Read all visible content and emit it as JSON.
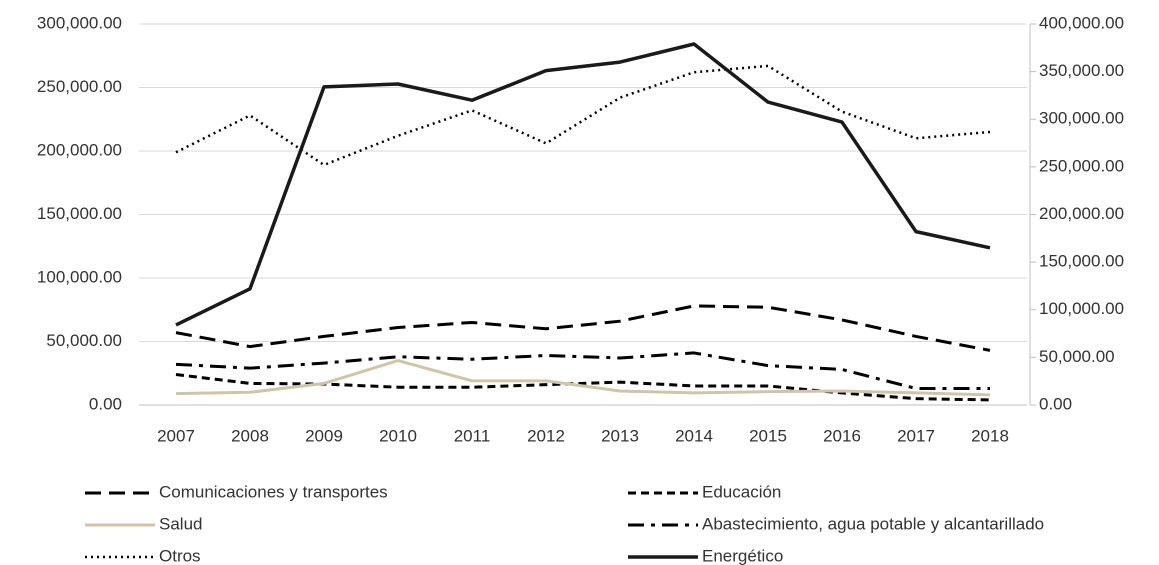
{
  "chart_data": {
    "type": "line",
    "categories": [
      "2007",
      "2008",
      "2009",
      "2010",
      "2011",
      "2012",
      "2013",
      "2014",
      "2015",
      "2016",
      "2017",
      "2018"
    ],
    "series": [
      {
        "name": "Comunicaciones y transportes",
        "color": "#000000",
        "style": "dashed",
        "values": [
          57000,
          46000,
          54000,
          61000,
          65000,
          60000,
          66000,
          78000,
          77000,
          67000,
          54000,
          43000
        ]
      },
      {
        "name": "Educación",
        "color": "#000000",
        "style": "short-dashed",
        "values": [
          24000,
          17000,
          16500,
          14000,
          14000,
          16000,
          18000,
          15000,
          15000,
          9500,
          5000,
          4000
        ]
      },
      {
        "name": "Salud",
        "color": "#cfc6a8",
        "style": "solid",
        "values": [
          9000,
          10000,
          17000,
          35000,
          19000,
          19000,
          11000,
          9500,
          10500,
          11000,
          9500,
          8000
        ]
      },
      {
        "name": "Abastecimiento, agua potable y alcantarillado",
        "color": "#000000",
        "style": "dash-dot",
        "values": [
          32000,
          29000,
          33000,
          38000,
          36000,
          39000,
          37000,
          41000,
          31000,
          28000,
          13000,
          13000
        ]
      },
      {
        "name": "Otros",
        "color": "#000000",
        "style": "dotted",
        "values": [
          199000,
          228000,
          189000,
          212000,
          232000,
          206000,
          242000,
          262000,
          267000,
          231000,
          210000,
          215000
        ]
      },
      {
        "name": "Energético",
        "color": "#1a1a1a",
        "style": "solid-thick",
        "axis": "y2",
        "values": [
          84000,
          122000,
          334000,
          337000,
          320000,
          351000,
          360000,
          379000,
          318000,
          297000,
          182000,
          165000
        ]
      }
    ],
    "ylim": [
      0,
      300000
    ],
    "yticks": [
      {
        "value": 0,
        "label": "0.00"
      },
      {
        "value": 50000,
        "label": "50,000.00"
      },
      {
        "value": 100000,
        "label": "100,000.00"
      },
      {
        "value": 150000,
        "label": "150,000.00"
      },
      {
        "value": 200000,
        "label": "200,000.00"
      },
      {
        "value": 250000,
        "label": "250,000.00"
      },
      {
        "value": 300000,
        "label": "300,000.00"
      }
    ],
    "y2lim": [
      0,
      400000
    ],
    "y2ticks": [
      {
        "value": 0,
        "label": "0.00"
      },
      {
        "value": 50000,
        "label": "50,000.00"
      },
      {
        "value": 100000,
        "label": "100,000.00"
      },
      {
        "value": 150000,
        "label": "150,000.00"
      },
      {
        "value": 200000,
        "label": "200,000.00"
      },
      {
        "value": 250000,
        "label": "250,000.00"
      },
      {
        "value": 300000,
        "label": "300,000.00"
      },
      {
        "value": 350000,
        "label": "350,000.00"
      },
      {
        "value": 400000,
        "label": "400,000.00"
      }
    ],
    "grid": true,
    "legend": "bottom"
  }
}
